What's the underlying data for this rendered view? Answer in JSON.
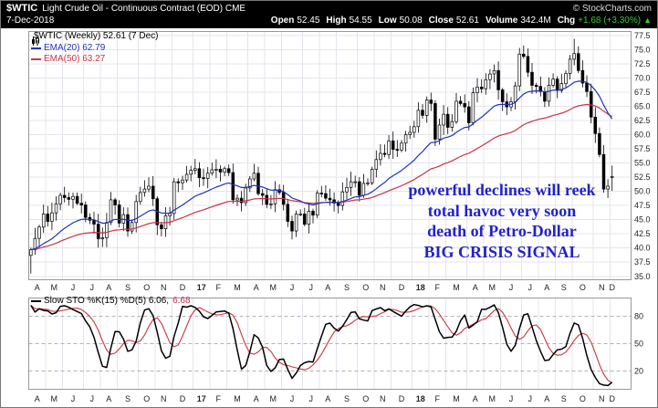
{
  "header": {
    "symbol": "$WTIC",
    "name": "Light Crude Oil - Continuous Contract (EOD) CME",
    "credit": "© StockCharts.com",
    "date": "7-Dec-2018",
    "quote": [
      {
        "label": "Open",
        "value": "52.45"
      },
      {
        "label": "High",
        "value": "54.55"
      },
      {
        "label": "Low",
        "value": "50.08"
      },
      {
        "label": "Close",
        "value": "52.61"
      },
      {
        "label": "Volume",
        "value": "342.4M"
      },
      {
        "label": "Chg",
        "value": "+1.68 (+3.30%)"
      }
    ],
    "chg_arrow": "▲",
    "chg_color": "#33cc33"
  },
  "main_legend": {
    "title": "$WTIC (Weekly) 52.61 (7 Dec)",
    "ema20": "EMA(20) 62.79",
    "ema50": "EMA(50) 63.27"
  },
  "lower_legend": {
    "title": "Slow STO %K(15) %D(5) 6.06,",
    "d_value": "6.68"
  },
  "annotation": {
    "color": "#2222cc",
    "lines": [
      "powerful declines will reek",
      "total havoc very soon",
      "death of Petro-Dollar",
      "BIG CRISIS SIGNAL"
    ]
  },
  "chart_data": [
    {
      "type": "candlestick",
      "title": "$WTIC Light Crude Oil Weekly",
      "timeframe": "weekly, Apr 2016 - 7 Dec 2018",
      "x_month_labels": [
        "A",
        "M",
        "J",
        "J",
        "A",
        "S",
        "O",
        "N",
        "D",
        "17",
        "F",
        "M",
        "A",
        "M",
        "J",
        "J",
        "A",
        "S",
        "O",
        "N",
        "D",
        "18",
        "F",
        "M",
        "A",
        "M",
        "J",
        "J",
        "A",
        "S",
        "O",
        "N",
        "D"
      ],
      "weeks_per_month": [
        4,
        4,
        5,
        4,
        4,
        5,
        4,
        4,
        5,
        4,
        4,
        5,
        4,
        4,
        5,
        4,
        4,
        5,
        4,
        4,
        5,
        4,
        4,
        5,
        4,
        4,
        5,
        4,
        4,
        4,
        5,
        4,
        1
      ],
      "y_ticks": [
        77.5,
        75.0,
        72.5,
        70.0,
        67.5,
        65.0,
        62.5,
        60.0,
        57.5,
        55.0,
        52.5,
        50.0,
        47.5,
        45.0,
        42.5,
        40.0,
        37.5,
        35.0
      ],
      "y_tick_labels": [
        "77.5",
        "75.0",
        "72.5",
        "70.0",
        "67.5",
        "65.0",
        "62.5",
        "60.0",
        "57.5",
        "55.0",
        "52.5",
        "50.0",
        "47.5",
        "45.0",
        "42.5",
        "40.0",
        "37.5",
        "35.0"
      ],
      "y_range": [
        34.4,
        78.2
      ],
      "closes": [
        39.7,
        41.7,
        43.7,
        46.0,
        44.7,
        46.2,
        47.8,
        49.3,
        48.9,
        48.6,
        49.1,
        47.9,
        47.6,
        45.4,
        44.9,
        44.2,
        41.6,
        41.8,
        44.5,
        48.5,
        47.6,
        44.4,
        45.9,
        43.0,
        44.5,
        48.2,
        49.8,
        50.4,
        50.9,
        48.7,
        44.1,
        43.4,
        45.7,
        46.1,
        51.7,
        51.5,
        52.0,
        53.0,
        53.7,
        54.0,
        52.4,
        52.3,
        53.2,
        53.8,
        53.9,
        53.4,
        54.0,
        53.3,
        48.5,
        48.8,
        48.0,
        50.6,
        52.2,
        53.2,
        49.6,
        49.3,
        47.7,
        47.8,
        50.3,
        49.8,
        47.7,
        44.7,
        43.0,
        46.0,
        46.0,
        44.2,
        46.5,
        45.8,
        49.7,
        49.6,
        48.8,
        48.5,
        47.9,
        47.5,
        49.9,
        50.7,
        51.7,
        51.7,
        49.3,
        51.4,
        51.5,
        53.9,
        55.6,
        56.7,
        56.5,
        58.9,
        57.4,
        57.3,
        58.5,
        60.0,
        60.4,
        61.4,
        64.3,
        63.4,
        66.1,
        65.5,
        59.2,
        61.7,
        63.6,
        61.3,
        62.3,
        65.9,
        65.5,
        64.9,
        62.1,
        67.4,
        68.4,
        68.1,
        69.7,
        70.7,
        71.3,
        67.9,
        65.8,
        64.9,
        65.8,
        68.6,
        74.2,
        73.8,
        71.0,
        68.7,
        68.5,
        67.6,
        65.9,
        68.7,
        69.8,
        67.8,
        69.0,
        70.8,
        73.3,
        74.3,
        71.3,
        69.1,
        67.6,
        63.1,
        60.2,
        56.5,
        50.4,
        50.9,
        52.61
      ],
      "last_bar": {
        "open": 52.45,
        "high": 54.55,
        "low": 50.08,
        "close": 52.61
      },
      "highs_override": {
        "116": 75.3,
        "129": 76.9
      },
      "lows_override": {
        "0": 35.5
      },
      "overlays": [
        {
          "name": "EMA(20)",
          "last_value": 62.79,
          "color": "#2233bb"
        },
        {
          "name": "EMA(50)",
          "last_value": 63.27,
          "color": "#cc3344"
        }
      ]
    },
    {
      "type": "line",
      "title": "Slow STO %K(15) %D(5)",
      "k_last": 6.06,
      "d_last": 6.68,
      "y_ticks": [
        80,
        50,
        20
      ],
      "y_tick_labels": [
        "80",
        "50",
        "20"
      ],
      "y_range": [
        0,
        100
      ],
      "colors": {
        "k": "#000000",
        "d": "#cc3344"
      },
      "note": "series computed from weekly closes above"
    }
  ]
}
